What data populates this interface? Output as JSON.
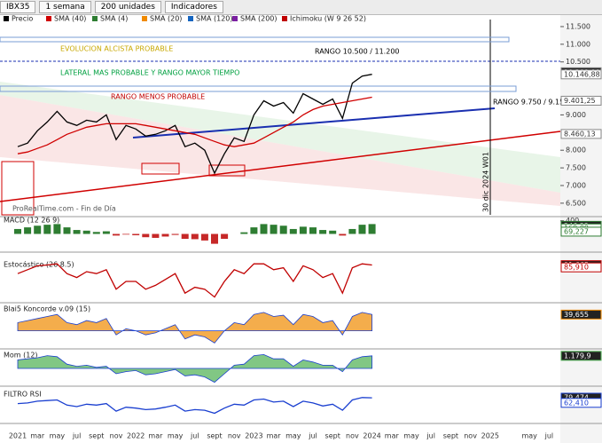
{
  "toolbar": {
    "symbol": "IBX35",
    "period": "1 semana",
    "units": "200 unidades",
    "indicators": "Indicadores"
  },
  "chart_data": [
    {
      "type": "line",
      "legend": [
        "Precio",
        "SMA (40)",
        "SMA (4)",
        "SMA (20)",
        "SMA (120)",
        "SMA (200)",
        "Ichimoku (W 9 26 52)"
      ],
      "categories": [
        "2021",
        null,
        "mar",
        null,
        "may",
        null,
        "jul",
        null,
        "sept",
        null,
        "nov",
        null,
        "2022",
        null,
        "mar",
        null,
        "may",
        null,
        "jul",
        null,
        "sept",
        null,
        "nov",
        null,
        "2023",
        null,
        "mar",
        null,
        "may",
        null,
        "jul",
        null,
        "sept",
        null,
        "nov",
        null,
        "2024",
        null,
        "mar",
        null,
        "may",
        null,
        "jul",
        null,
        "sept",
        null,
        "nov",
        null,
        "2025",
        null,
        null,
        null,
        "may",
        null,
        "jul"
      ],
      "series": [
        {
          "color": "#000000",
          "values": [
            8100,
            8200,
            8550,
            8800,
            9100,
            8800,
            8700,
            8850,
            8800,
            9000,
            8300,
            8700,
            8600,
            8400,
            8450,
            8550,
            8700,
            8100,
            8200,
            8000,
            7350,
            7900,
            8350,
            8250,
            9000,
            9400,
            9250,
            9350,
            9050,
            9600,
            9450,
            9300,
            9450,
            8900,
            9900,
            10100,
            10150,
            null,
            null,
            null,
            null,
            null,
            null,
            null,
            null,
            null,
            null,
            null,
            null,
            null,
            null,
            null,
            null,
            null,
            null
          ]
        },
        {
          "color": "#d00000",
          "values": [
            7900,
            7950,
            8050,
            8150,
            8300,
            8450,
            8550,
            8650,
            8700,
            8750,
            8750,
            8750,
            8750,
            8700,
            8650,
            8600,
            8550,
            8500,
            8450,
            8350,
            8250,
            8150,
            8100,
            8150,
            8200,
            8350,
            8500,
            8650,
            8800,
            9000,
            9150,
            9250,
            9300,
            9350,
            9400,
            9450,
            9500,
            null,
            null,
            null,
            null,
            null,
            null,
            null,
            null,
            null,
            null,
            null,
            null,
            null,
            null,
            null,
            null,
            null,
            null
          ]
        }
      ],
      "ylim": [
        6170,
        11700
      ],
      "yticks": [
        {
          "value": 6500,
          "label": "6.500"
        },
        {
          "value": 7000,
          "label": "7.000"
        },
        {
          "value": 7500,
          "label": "7.500"
        },
        {
          "value": 8000,
          "label": "8.000"
        },
        {
          "value": 9000,
          "label": "9.000"
        },
        {
          "value": 10500,
          "label": "10.500"
        },
        {
          "value": 11000,
          "label": "11.000"
        },
        {
          "value": 11500,
          "label": "11.500"
        }
      ],
      "price_labels": [
        {
          "value": 10209,
          "label": "10.209,00"
        },
        {
          "value": 10146.88,
          "label": "10.146,88"
        },
        {
          "value": 9401.25,
          "label": "9.401,25"
        },
        {
          "value": 8460.13,
          "label": "8.460,13"
        }
      ],
      "annotations": [
        "EVOLUCION ALCISTA PROBABLE",
        "LATERAL MAS PROBABLE Y RANGO MAYOR TIEMPO",
        "RANGO MENOS PROBABLE",
        "RANGO 10.500 / 11.200",
        "RANGO 9.750 / 9.150",
        "ProRealTime.com - Fin de Día",
        "30 dic 2024 W01"
      ]
    },
    {
      "type": "bar",
      "title": "MACD (12 26 9)",
      "color": "#2e7d32",
      "ylim": [
        -500,
        500
      ],
      "yticks": [
        400
      ],
      "values": [
        150,
        200,
        250,
        280,
        300,
        200,
        120,
        100,
        60,
        80,
        -50,
        -20,
        -40,
        -100,
        -120,
        -80,
        -30,
        -150,
        -160,
        -200,
        -300,
        -150,
        0,
        50,
        200,
        300,
        280,
        250,
        150,
        220,
        200,
        120,
        100,
        -50,
        150,
        280,
        300
      ],
      "price_labels": [
        {
          "value": 246.22,
          "label": "246,22"
        },
        {
          "value": 169.09,
          "label": "169,09"
        },
        {
          "value": 69.227,
          "label": "69,227"
        }
      ]
    },
    {
      "type": "line",
      "title": "Estocástico (26 8.5)",
      "color": "#c00000",
      "ylim": [
        0,
        100
      ],
      "values": [
        70,
        80,
        90,
        92,
        95,
        70,
        60,
        75,
        70,
        80,
        30,
        50,
        50,
        30,
        40,
        55,
        70,
        20,
        35,
        30,
        10,
        50,
        80,
        70,
        95,
        95,
        80,
        85,
        50,
        90,
        80,
        60,
        70,
        20,
        85,
        95,
        92
      ],
      "price_labels": [
        {
          "value": 91.665,
          "label": "91,665"
        },
        {
          "value": 85.91,
          "label": "85,910"
        }
      ]
    },
    {
      "type": "area",
      "title": "Blai5 Koncorde v.09 (15)",
      "color": "#f08a00",
      "ylim": [
        -40,
        60
      ],
      "values": [
        20,
        25,
        30,
        35,
        40,
        20,
        15,
        25,
        20,
        30,
        -10,
        5,
        0,
        -10,
        -5,
        5,
        15,
        -20,
        -10,
        -15,
        -30,
        0,
        20,
        15,
        40,
        45,
        35,
        38,
        15,
        40,
        35,
        20,
        25,
        -10,
        35,
        45,
        40
      ],
      "price_labels": [
        {
          "value": 39.655,
          "label": "39,655"
        }
      ]
    },
    {
      "type": "area",
      "title": "Mom (12)",
      "color": "#4caf50",
      "ylim": [
        -1500,
        1500
      ],
      "values": [
        800,
        900,
        1000,
        1200,
        1100,
        400,
        200,
        300,
        100,
        200,
        -500,
        -300,
        -200,
        -600,
        -500,
        -300,
        -100,
        -700,
        -600,
        -800,
        -1300,
        -500,
        300,
        400,
        1200,
        1300,
        900,
        900,
        200,
        800,
        600,
        300,
        300,
        -300,
        800,
        1100,
        1180
      ],
      "price_labels": [
        {
          "value": 1179.9,
          "label": "1.179,9"
        }
      ]
    },
    {
      "type": "line",
      "title": "FILTRO RSI",
      "color": "#1a3fd0",
      "ylim": [
        0,
        100
      ],
      "values": [
        60,
        62,
        68,
        70,
        72,
        55,
        50,
        58,
        55,
        60,
        35,
        48,
        45,
        40,
        42,
        48,
        55,
        35,
        40,
        38,
        28,
        45,
        58,
        55,
        72,
        75,
        65,
        68,
        50,
        68,
        62,
        52,
        58,
        38,
        72,
        80,
        79
      ],
      "price_labels": [
        {
          "value": 79.474,
          "label": "79,474"
        },
        {
          "value": 62.41,
          "label": "62,410"
        }
      ]
    }
  ]
}
